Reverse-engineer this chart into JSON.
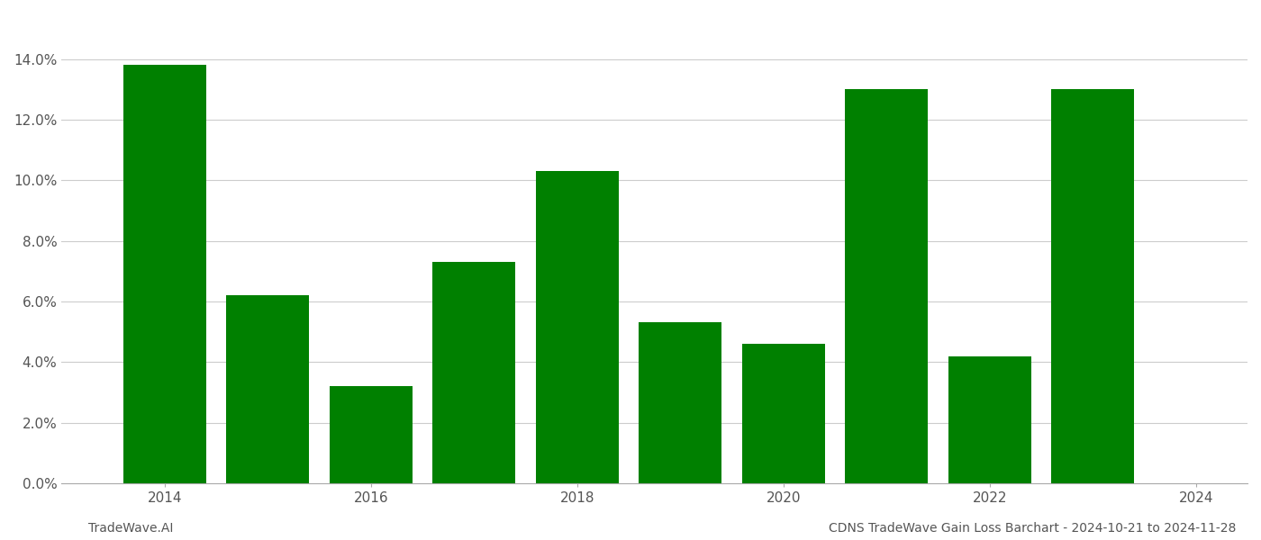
{
  "years": [
    2014,
    2015,
    2016,
    2017,
    2018,
    2019,
    2020,
    2021,
    2022,
    2023
  ],
  "values": [
    0.138,
    0.062,
    0.032,
    0.073,
    0.103,
    0.053,
    0.046,
    0.13,
    0.042,
    0.13
  ],
  "bar_color": "#008000",
  "background_color": "#ffffff",
  "grid_color": "#cccccc",
  "ylim": [
    0,
    0.155
  ],
  "yticks": [
    0.0,
    0.02,
    0.04,
    0.06,
    0.08,
    0.1,
    0.12,
    0.14
  ],
  "xticks": [
    2014,
    2016,
    2018,
    2020,
    2022,
    2024
  ],
  "xlim": [
    2013.0,
    2024.5
  ],
  "footer_left": "TradeWave.AI",
  "footer_right": "CDNS TradeWave Gain Loss Barchart - 2024-10-21 to 2024-11-28",
  "footer_fontsize": 10,
  "tick_fontsize": 11,
  "bar_width": 0.8
}
